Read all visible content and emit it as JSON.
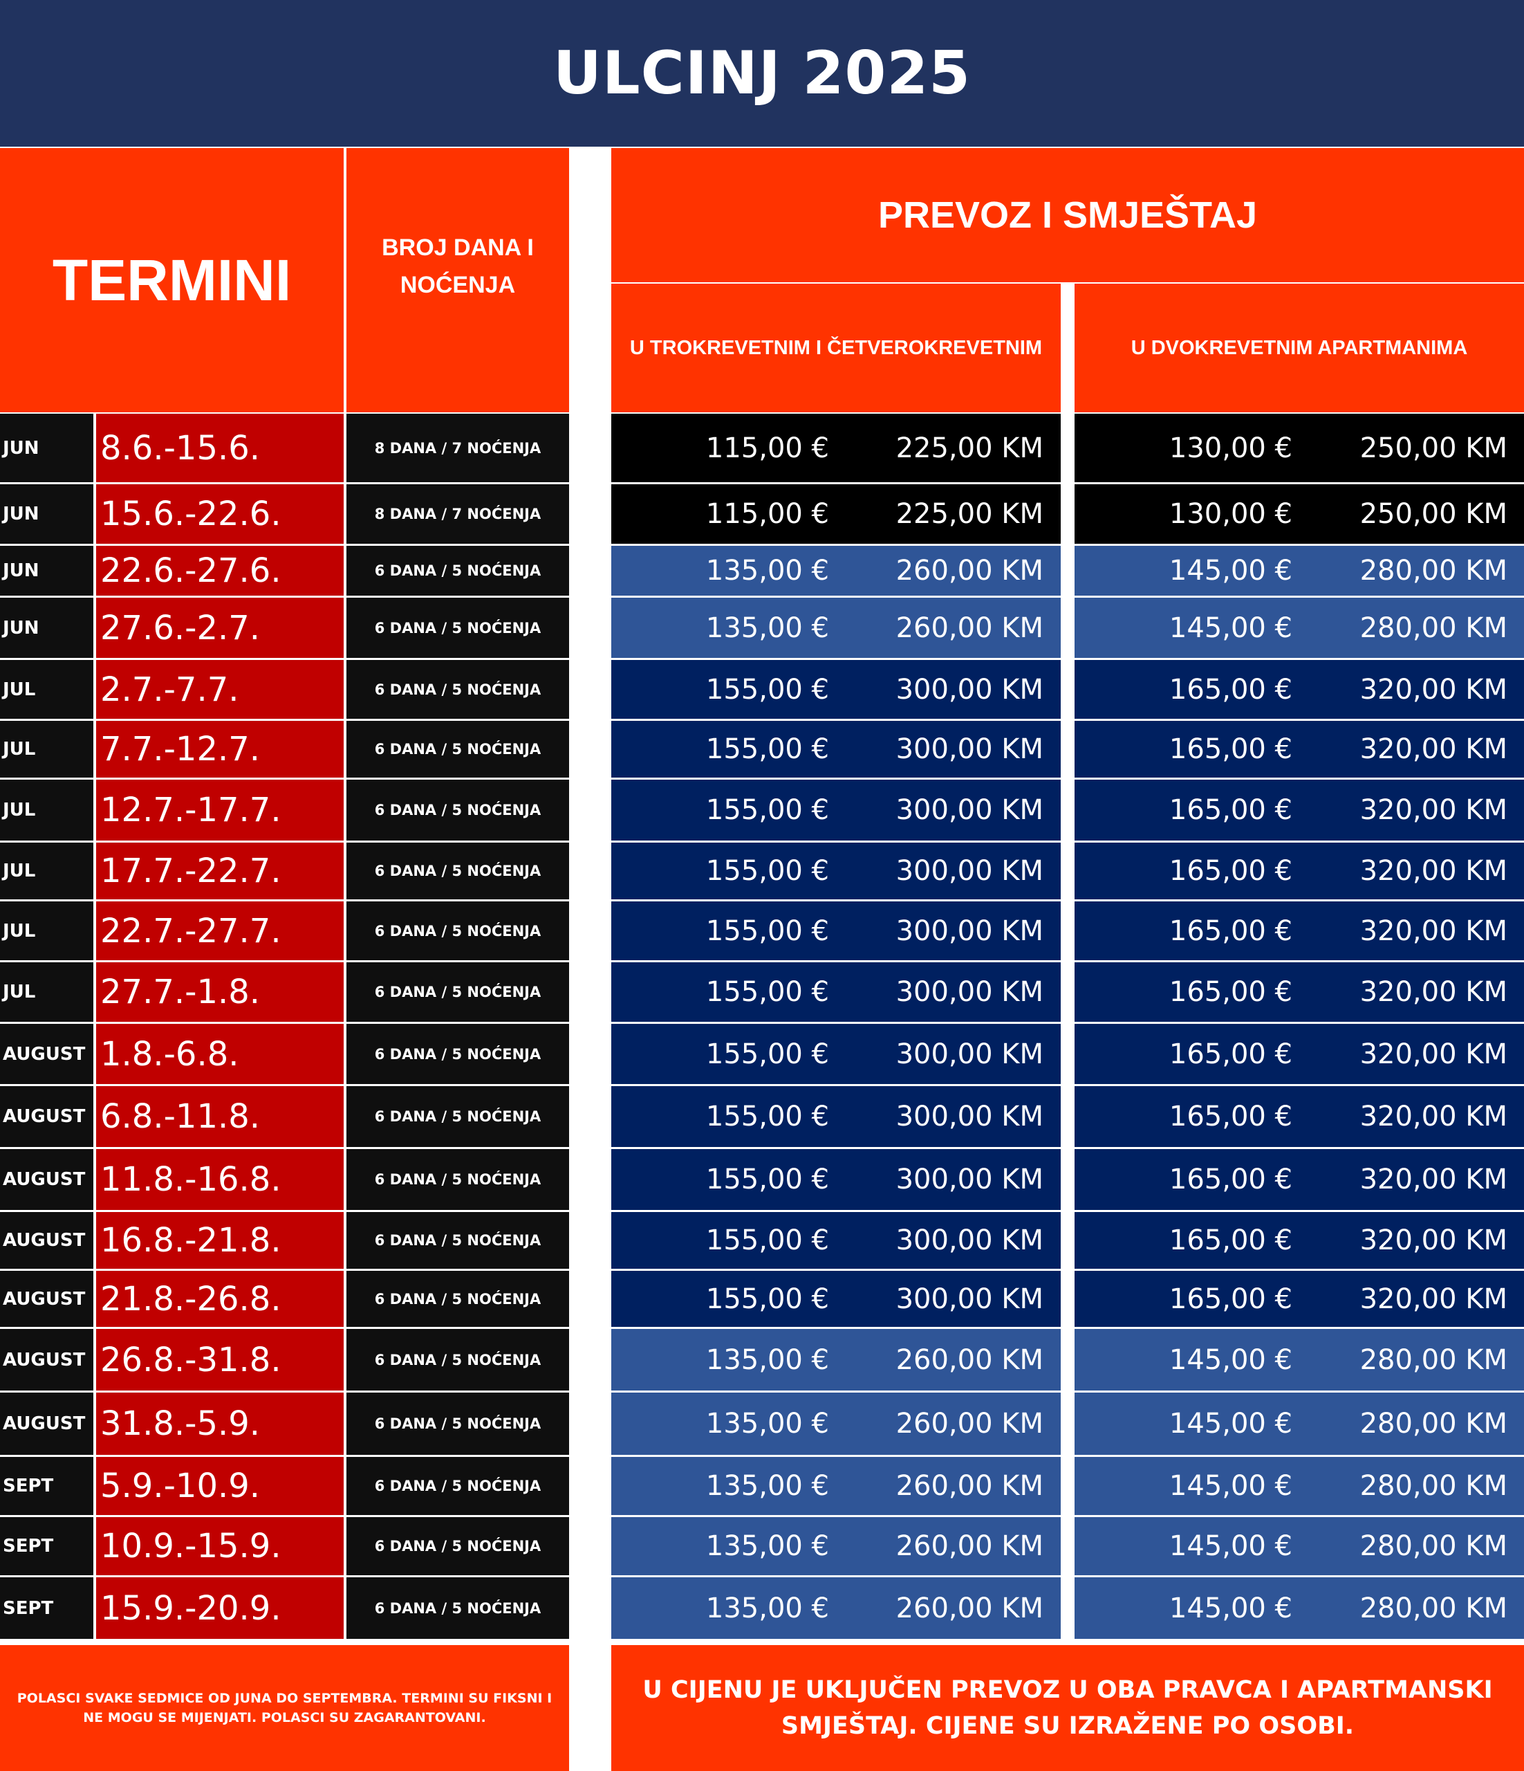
{
  "title": "ULCINJ 2025",
  "headers": {
    "termini": "TERMINI",
    "broj": "BROJ DANA I NOĆENJA",
    "prevoz": "PREVOZ I SMJEŠTAJ",
    "trokrevetni": "U TROKREVETNIM I ČETVEROKREVETNIM",
    "dvokrevetni": "U DVOKREVETNIM APARTMANIMA"
  },
  "colors": {
    "title_bg": "#21335f",
    "header_bg": "#ff3300",
    "dates_bg": "#c00000",
    "month_bg": "#0f0f0f",
    "price_black": "#000000",
    "price_light": "#2f5597",
    "price_dark": "#002060"
  },
  "rows": [
    {
      "month": "JUN",
      "dates": "8.6.-15.6.",
      "duration": "8 DANA / 7 NOĆENJA",
      "p1_eur": "115,00 €",
      "p1_km": "225,00 KM",
      "p2_eur": "130,00 €",
      "p2_km": "250,00 KM",
      "tier": "black"
    },
    {
      "month": "JUN",
      "dates": "15.6.-22.6.",
      "duration": "8 DANA / 7 NOĆENJA",
      "p1_eur": "115,00 €",
      "p1_km": "225,00 KM",
      "p2_eur": "130,00 €",
      "p2_km": "250,00 KM",
      "tier": "black"
    },
    {
      "month": "JUN",
      "dates": "22.6.-27.6.",
      "duration": "6 DANA / 5 NOĆENJA",
      "p1_eur": "135,00 €",
      "p1_km": "260,00 KM",
      "p2_eur": "145,00 €",
      "p2_km": "280,00 KM",
      "tier": "light"
    },
    {
      "month": "JUN",
      "dates": "27.6.-2.7.",
      "duration": "6 DANA / 5 NOĆENJA",
      "p1_eur": "135,00 €",
      "p1_km": "260,00 KM",
      "p2_eur": "145,00 €",
      "p2_km": "280,00 KM",
      "tier": "light"
    },
    {
      "month": "JUL",
      "dates": "2.7.-7.7.",
      "duration": "6 DANA / 5 NOĆENJA",
      "p1_eur": "155,00 €",
      "p1_km": "300,00 KM",
      "p2_eur": "165,00 €",
      "p2_km": "320,00 KM",
      "tier": "dark"
    },
    {
      "month": "JUL",
      "dates": "7.7.-12.7.",
      "duration": "6 DANA / 5 NOĆENJA",
      "p1_eur": "155,00 €",
      "p1_km": "300,00 KM",
      "p2_eur": "165,00 €",
      "p2_km": "320,00 KM",
      "tier": "dark"
    },
    {
      "month": "JUL",
      "dates": "12.7.-17.7.",
      "duration": "6 DANA / 5 NOĆENJA",
      "p1_eur": "155,00 €",
      "p1_km": "300,00 KM",
      "p2_eur": "165,00 €",
      "p2_km": "320,00 KM",
      "tier": "dark"
    },
    {
      "month": "JUL",
      "dates": "17.7.-22.7.",
      "duration": "6 DANA / 5 NOĆENJA",
      "p1_eur": "155,00 €",
      "p1_km": "300,00 KM",
      "p2_eur": "165,00 €",
      "p2_km": "320,00 KM",
      "tier": "dark"
    },
    {
      "month": "JUL",
      "dates": "22.7.-27.7.",
      "duration": "6 DANA / 5 NOĆENJA",
      "p1_eur": "155,00 €",
      "p1_km": "300,00 KM",
      "p2_eur": "165,00 €",
      "p2_km": "320,00 KM",
      "tier": "dark"
    },
    {
      "month": "JUL",
      "dates": "27.7.-1.8.",
      "duration": "6 DANA / 5 NOĆENJA",
      "p1_eur": "155,00 €",
      "p1_km": "300,00 KM",
      "p2_eur": "165,00 €",
      "p2_km": "320,00 KM",
      "tier": "dark"
    },
    {
      "month": "AUGUST",
      "dates": "1.8.-6.8.",
      "duration": "6 DANA / 5 NOĆENJA",
      "p1_eur": "155,00 €",
      "p1_km": "300,00 KM",
      "p2_eur": "165,00 €",
      "p2_km": "320,00 KM",
      "tier": "dark"
    },
    {
      "month": "AUGUST",
      "dates": "6.8.-11.8.",
      "duration": "6 DANA / 5 NOĆENJA",
      "p1_eur": "155,00 €",
      "p1_km": "300,00 KM",
      "p2_eur": "165,00 €",
      "p2_km": "320,00 KM",
      "tier": "dark"
    },
    {
      "month": "AUGUST",
      "dates": "11.8.-16.8.",
      "duration": "6 DANA / 5 NOĆENJA",
      "p1_eur": "155,00 €",
      "p1_km": "300,00 KM",
      "p2_eur": "165,00 €",
      "p2_km": "320,00 KM",
      "tier": "dark"
    },
    {
      "month": "AUGUST",
      "dates": "16.8.-21.8.",
      "duration": "6 DANA / 5 NOĆENJA",
      "p1_eur": "155,00 €",
      "p1_km": "300,00 KM",
      "p2_eur": "165,00 €",
      "p2_km": "320,00 KM",
      "tier": "dark"
    },
    {
      "month": "AUGUST",
      "dates": "21.8.-26.8.",
      "duration": "6 DANA / 5 NOĆENJA",
      "p1_eur": "155,00 €",
      "p1_km": "300,00 KM",
      "p2_eur": "165,00 €",
      "p2_km": "320,00 KM",
      "tier": "dark"
    },
    {
      "month": "AUGUST",
      "dates": "26.8.-31.8.",
      "duration": "6 DANA / 5 NOĆENJA",
      "p1_eur": "135,00 €",
      "p1_km": "260,00 KM",
      "p2_eur": "145,00 €",
      "p2_km": "280,00 KM",
      "tier": "light"
    },
    {
      "month": "AUGUST",
      "dates": "31.8.-5.9.",
      "duration": "6 DANA / 5 NOĆENJA",
      "p1_eur": "135,00 €",
      "p1_km": "260,00 KM",
      "p2_eur": "145,00 €",
      "p2_km": "280,00 KM",
      "tier": "light"
    },
    {
      "month": "SEPT",
      "dates": "5.9.-10.9.",
      "duration": "6 DANA / 5 NOĆENJA",
      "p1_eur": "135,00 €",
      "p1_km": "260,00 KM",
      "p2_eur": "145,00 €",
      "p2_km": "280,00 KM",
      "tier": "light"
    },
    {
      "month": "SEPT",
      "dates": "10.9.-15.9.",
      "duration": "6 DANA / 5 NOĆENJA",
      "p1_eur": "135,00 €",
      "p1_km": "260,00 KM",
      "p2_eur": "145,00 €",
      "p2_km": "280,00 KM",
      "tier": "light"
    },
    {
      "month": "SEPT",
      "dates": "15.9.-20.9.",
      "duration": "6 DANA / 5 NOĆENJA",
      "p1_eur": "135,00 €",
      "p1_km": "260,00 KM",
      "p2_eur": "145,00 €",
      "p2_km": "280,00 KM",
      "tier": "light"
    }
  ],
  "notes": {
    "left": "POLASCI SVAKE SEDMICE OD JUNA DO SEPTEMBRA. TERMINI SU FIKSNI I NE MOGU SE MIJENJATI. POLASCI SU ZAGARANTOVANI.",
    "right": "U CIJENU JE UKLJUČEN PREVOZ U OBA PRAVCA I APARTMANSKI SMJEŠTAJ. CIJENE SU IZRAŽENE PO OSOBI."
  }
}
